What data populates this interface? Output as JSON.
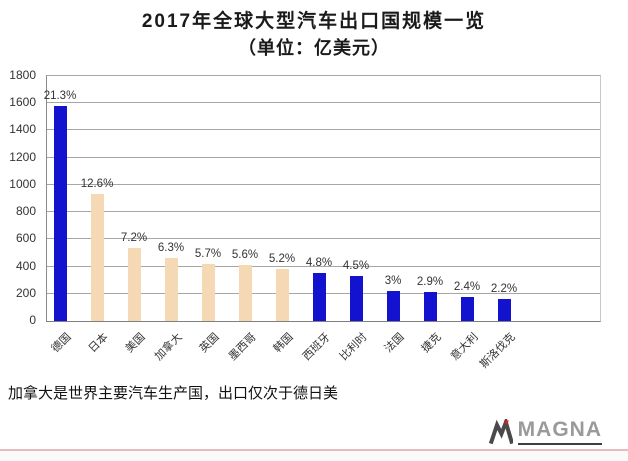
{
  "page": {
    "title": "2017年全球大型汽车出口国规模一览",
    "subtitle": "（单位：亿美元）",
    "caption": "加拿大是世界主要汽车生产国，出口仅次于德日美"
  },
  "logo": {
    "brand": "MAGNA"
  },
  "colors": {
    "bar_blue": "#1313cf",
    "bar_tan": "#f5d8b4",
    "gridline": "#a6a6a6",
    "axis": "#8c8c8c",
    "divider_pink": "#e8bcbe",
    "logo_gray": "#9a9a9a",
    "logo_dark": "#4a4a4a",
    "logo_red": "#cc2229"
  },
  "chart_data": {
    "type": "bar",
    "title": "2017年全球大型汽车出口国规模一览",
    "unit_label": "（单位：亿美元）",
    "categories": [
      "德国",
      "日本",
      "美国",
      "加拿大",
      "英国",
      "墨西哥",
      "韩国",
      "西班牙",
      "比利时",
      "法国",
      "捷克",
      "意大利",
      "斯洛伐克"
    ],
    "values": [
      1578,
      932,
      533,
      466,
      422,
      414,
      385,
      355,
      333,
      222,
      215,
      178,
      163
    ],
    "bar_labels": [
      "21.3%",
      "12.6%",
      "7.2%",
      "6.3%",
      "5.7%",
      "5.6%",
      "5.2%",
      "4.8%",
      "4.5%",
      "3%",
      "2.9%",
      "2.4%",
      "2.2%"
    ],
    "bar_color_roles": [
      "blue",
      "tan",
      "tan",
      "tan",
      "tan",
      "tan",
      "tan",
      "blue",
      "blue",
      "blue",
      "blue",
      "blue",
      "blue"
    ],
    "ylim": [
      0,
      1800
    ],
    "yticks": [
      0,
      200,
      400,
      600,
      800,
      1000,
      1200,
      1400,
      1600,
      1800
    ],
    "grid": "horizontal",
    "legend": "none",
    "xlabel": "",
    "ylabel": ""
  }
}
